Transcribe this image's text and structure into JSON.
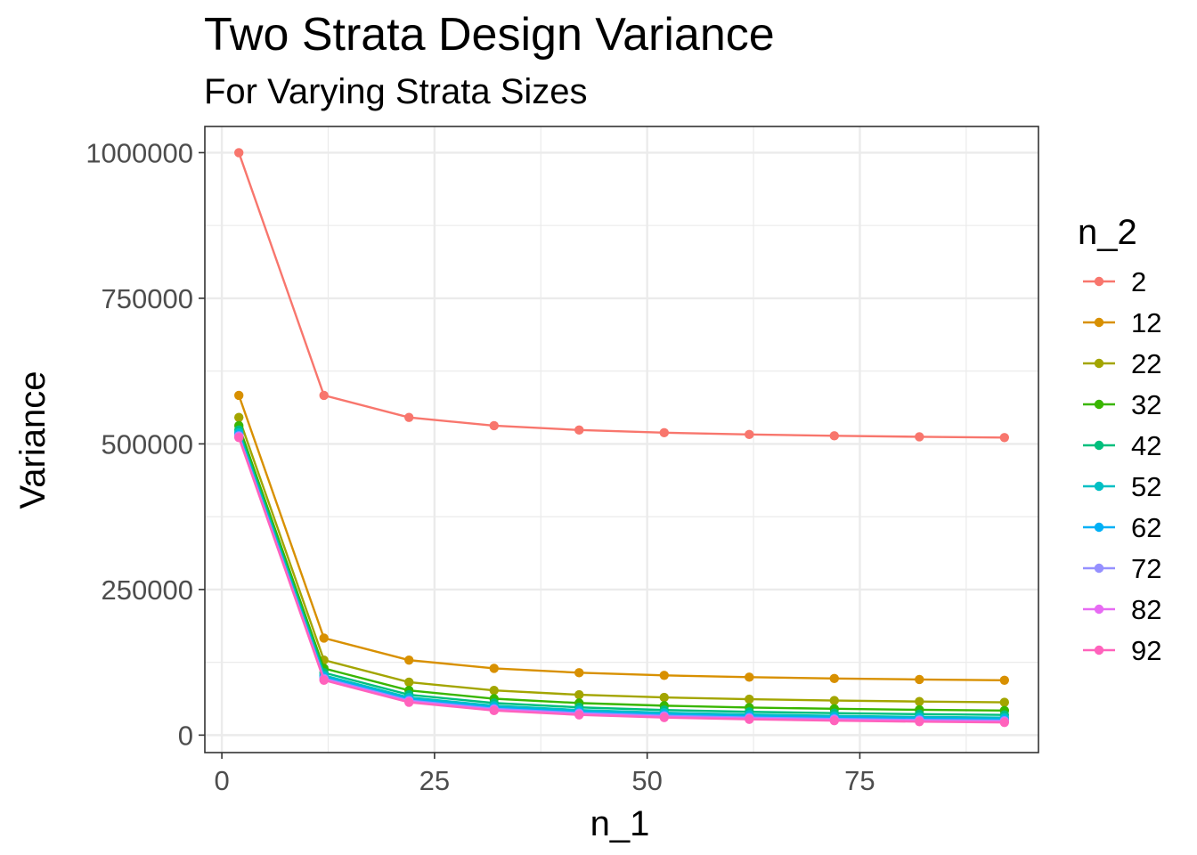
{
  "chart_data": {
    "type": "line",
    "title": "Two Strata Design Variance",
    "subtitle": "For Varying Strata Sizes",
    "xlabel": "n_1",
    "ylabel": "Variance",
    "xlim": [
      -2,
      96
    ],
    "ylim": [
      -30000,
      1045000
    ],
    "x_ticks": [
      0,
      25,
      50,
      75
    ],
    "x_tick_labels": [
      "0",
      "25",
      "50",
      "75"
    ],
    "y_ticks": [
      0,
      250000,
      500000,
      750000,
      1000000
    ],
    "y_tick_labels": [
      "0",
      "250000",
      "500000",
      "750000",
      "1000000"
    ],
    "grid": true,
    "legend_title": "n_2",
    "legend_position": "right",
    "x": [
      2,
      12,
      22,
      32,
      42,
      52,
      62,
      72,
      82,
      92
    ],
    "series": [
      {
        "name": "2",
        "color": "#F8766D",
        "values": [
          1000000,
          583333,
          545455,
          531250,
          523810,
          519231,
          516129,
          513889,
          512195,
          510870
        ]
      },
      {
        "name": "12",
        "color": "#D89000",
        "values": [
          583333,
          166667,
          128788,
          114583,
          107143,
          102564,
          99462,
          97222,
          95528,
          94203
        ]
      },
      {
        "name": "22",
        "color": "#A3A500",
        "values": [
          545455,
          128788,
          90909,
          76705,
          69264,
          64685,
          61584,
          59343,
          57650,
          56324
        ]
      },
      {
        "name": "32",
        "color": "#39B600",
        "values": [
          531250,
          114583,
          76705,
          62500,
          55060,
          50481,
          47379,
          45139,
          43445,
          42120
        ]
      },
      {
        "name": "42",
        "color": "#00BF7D",
        "values": [
          523810,
          107143,
          69264,
          55060,
          47619,
          43040,
          39939,
          37698,
          36005,
          34679
        ]
      },
      {
        "name": "52",
        "color": "#00BFC4",
        "values": [
          519231,
          102564,
          64685,
          50481,
          43040,
          38462,
          35360,
          33120,
          31426,
          30100
        ]
      },
      {
        "name": "62",
        "color": "#00B0F6",
        "values": [
          516129,
          99462,
          61584,
          47379,
          39939,
          35360,
          32258,
          30018,
          28324,
          26999
        ]
      },
      {
        "name": "72",
        "color": "#9590FF",
        "values": [
          513889,
          97222,
          59343,
          45139,
          37698,
          33120,
          30018,
          27778,
          26084,
          24758
        ]
      },
      {
        "name": "82",
        "color": "#E76BF3",
        "values": [
          512195,
          95528,
          57650,
          43445,
          36005,
          31426,
          28324,
          26084,
          24390,
          23065
        ]
      },
      {
        "name": "92",
        "color": "#FF62BC",
        "values": [
          510870,
          94203,
          56324,
          42120,
          34679,
          30100,
          26999,
          24758,
          23065,
          21739
        ]
      }
    ]
  }
}
